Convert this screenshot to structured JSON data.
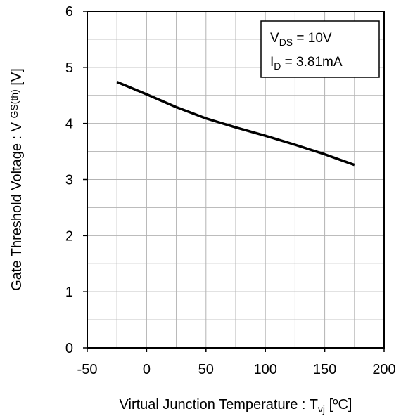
{
  "chart_data": {
    "type": "line",
    "xlabel": {
      "main": "Virtual Junction Temperature : T",
      "sub": "vj",
      "unit": " [ºC]"
    },
    "ylabel": {
      "main": "Gate Threshold Voltage : V ",
      "sub": "GS(th)",
      "unit": " [V]"
    },
    "xlim": [
      -50,
      200
    ],
    "ylim": [
      0,
      6
    ],
    "xticks": [
      -50,
      0,
      50,
      100,
      150,
      200
    ],
    "yticks": [
      0,
      1,
      2,
      3,
      4,
      5,
      6
    ],
    "xtick_labels": [
      "-50",
      "0",
      "50",
      "100",
      "150",
      "200"
    ],
    "ytick_labels": [
      "0",
      "1",
      "2",
      "3",
      "4",
      "5",
      "6"
    ],
    "grid": true,
    "legend_position": "top-right",
    "conditions": [
      {
        "symbol": "V",
        "sub": "DS",
        "value": " = 10V"
      },
      {
        "symbol": "I",
        "sub": "D",
        "value": " = 3.81mA"
      }
    ],
    "series": [
      {
        "x": [
          -25,
          0,
          25,
          50,
          75,
          100,
          125,
          150,
          175
        ],
        "y": [
          4.74,
          4.52,
          4.29,
          4.09,
          3.93,
          3.78,
          3.62,
          3.45,
          3.26
        ]
      }
    ]
  }
}
